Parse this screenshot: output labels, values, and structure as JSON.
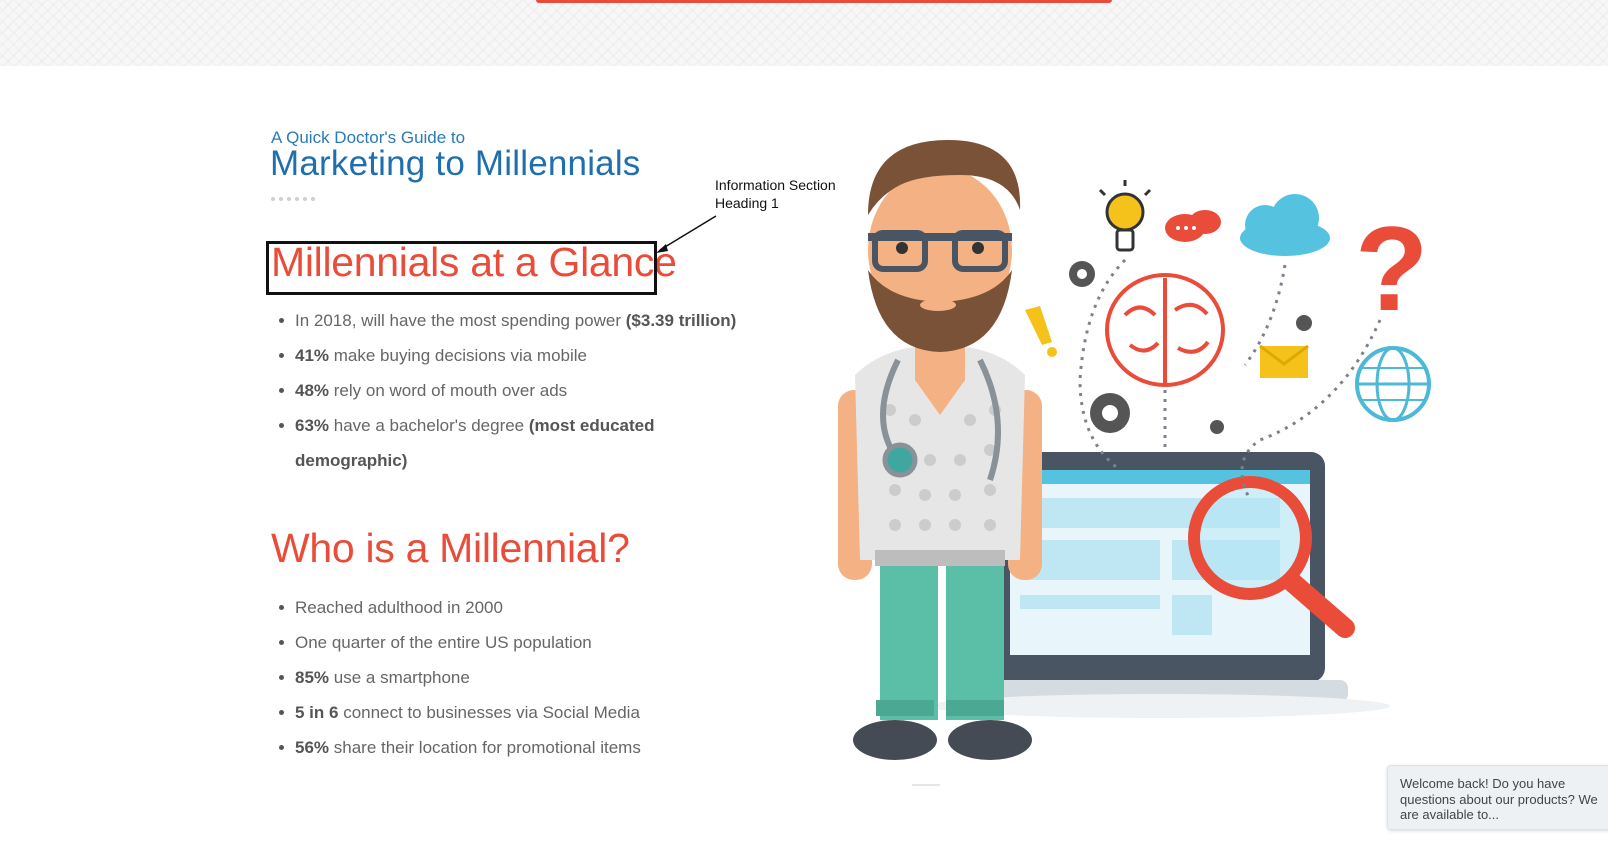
{
  "hero": {
    "kicker": "A Quick Doctor's Guide to",
    "title": "Marketing to Millennials"
  },
  "sections": [
    {
      "heading": "Millennials at a Glance",
      "items": [
        {
          "pre": "In 2018, will have the most spending power ",
          "bold": "($3.39 trillion)",
          "post": ""
        },
        {
          "pre": "",
          "bold": "41%",
          "post": " make buying decisions via mobile"
        },
        {
          "pre": "",
          "bold": "48%",
          "post": " rely on word of mouth over ads"
        },
        {
          "pre": "",
          "bold": "63%",
          "post": " have a bachelor's degree ",
          "bold2": "(most educated demographic)"
        }
      ]
    },
    {
      "heading": "Who is a Millennial?",
      "items": [
        {
          "pre": "Reached adulthood in 2000",
          "bold": "",
          "post": ""
        },
        {
          "pre": "One quarter of the entire US population",
          "bold": "",
          "post": ""
        },
        {
          "pre": "",
          "bold": "85%",
          "post": " use a smartphone"
        },
        {
          "pre": "",
          "bold": "5 in 6",
          "post": " connect to businesses via Social Media"
        },
        {
          "pre": "",
          "bold": "56%",
          "post": " share their location for promotional items"
        }
      ]
    }
  ],
  "annotation": {
    "line1": "Information Section",
    "line2": "Heading 1"
  },
  "chat": {
    "text": "Welcome back! Do you have questions about our products? We are available to..."
  },
  "colors": {
    "accent_red": "#ea4c3a",
    "heading_blue": "#1f6fae",
    "body_gray": "#666666"
  },
  "illustration": {
    "icons": [
      "doctor-figure",
      "laptop",
      "magnifier-icon",
      "brain-icon",
      "lightbulb-icon",
      "chat-bubble-icon",
      "cloud-icon",
      "question-mark-icon",
      "gear-icon",
      "envelope-icon",
      "globe-icon",
      "exclamation-icon"
    ]
  }
}
